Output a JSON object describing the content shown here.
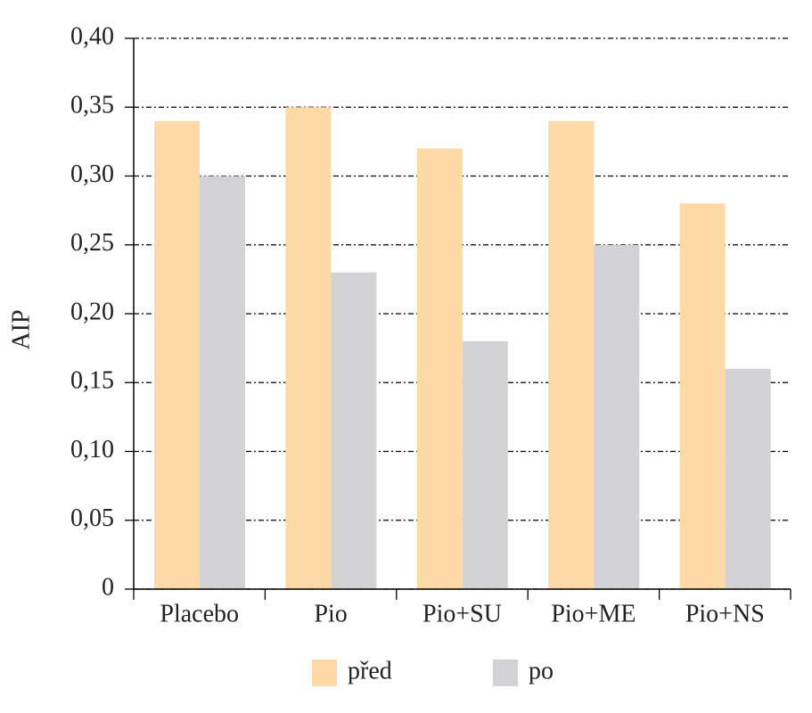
{
  "chart_data": {
    "type": "bar",
    "y_label": "AIP",
    "categories": [
      "Placebo",
      "Pio",
      "Pio+SU",
      "Pio+ME",
      "Pio+NS"
    ],
    "series": [
      {
        "name": "před",
        "color": "#fdd9a6",
        "values": [
          0.34,
          0.35,
          0.32,
          0.34,
          0.28
        ]
      },
      {
        "name": "po",
        "color": "#d3d3d5",
        "values": [
          0.3,
          0.23,
          0.18,
          0.25,
          0.16
        ]
      }
    ],
    "ylim": [
      0,
      0.4
    ],
    "yticks": [
      0,
      {
        "value": 0.05,
        "label": "0,05"
      },
      {
        "value": 0.1,
        "label": "0,10"
      },
      {
        "value": 0.15,
        "label": "0,15"
      },
      {
        "value": 0.2,
        "label": "0,20"
      },
      {
        "value": 0.25,
        "label": "0,25"
      },
      {
        "value": 0.3,
        "label": "0,30"
      },
      {
        "value": 0.35,
        "label": "0,35"
      },
      {
        "value": 0.4,
        "label": "0,40"
      }
    ],
    "grid": true,
    "legend": "bottom"
  }
}
